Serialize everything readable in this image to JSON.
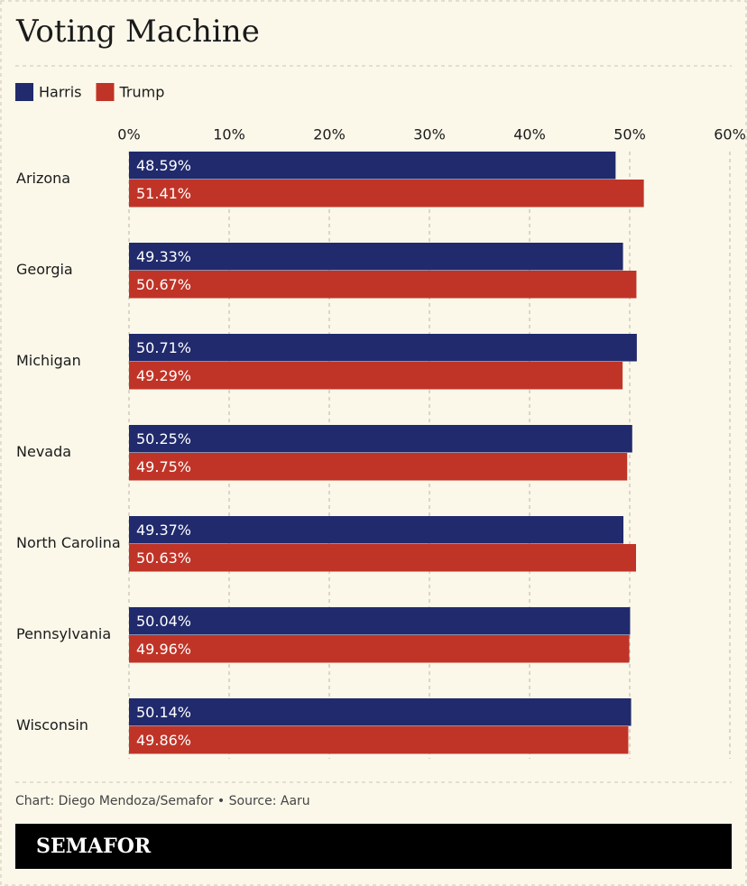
{
  "chart_data": {
    "type": "grouped-hbar",
    "title": "Voting Machine",
    "categories": [
      "Arizona",
      "Georgia",
      "Michigan",
      "Nevada",
      "North Carolina",
      "Pennsylvania",
      "Wisconsin"
    ],
    "series": [
      {
        "name": "Harris",
        "color": "#202a6c",
        "values": [
          48.59,
          49.33,
          50.71,
          50.25,
          49.37,
          50.04,
          50.14
        ],
        "value_labels": [
          "48.59%",
          "49.33%",
          "50.71%",
          "50.25%",
          "49.37%",
          "50.04%",
          "50.14%"
        ]
      },
      {
        "name": "Trump",
        "color": "#c03427",
        "values": [
          51.41,
          50.67,
          49.29,
          49.75,
          50.63,
          49.96,
          49.86
        ],
        "value_labels": [
          "51.41%",
          "50.67%",
          "49.29%",
          "49.75%",
          "50.63%",
          "49.96%",
          "49.86%"
        ]
      }
    ],
    "xlim": [
      0,
      60
    ],
    "xticks": [
      {
        "value": 0,
        "label": "0%"
      },
      {
        "value": 10,
        "label": "10%"
      },
      {
        "value": 20,
        "label": "20%"
      },
      {
        "value": 30,
        "label": "30%"
      },
      {
        "value": 40,
        "label": "40%"
      },
      {
        "value": 50,
        "label": "50%"
      },
      {
        "value": 60,
        "label": "60%"
      }
    ],
    "grid": true,
    "source": "Chart: Diego Mendoza/Semafor • Source: Aaru",
    "brand": "SEMAFOR"
  }
}
